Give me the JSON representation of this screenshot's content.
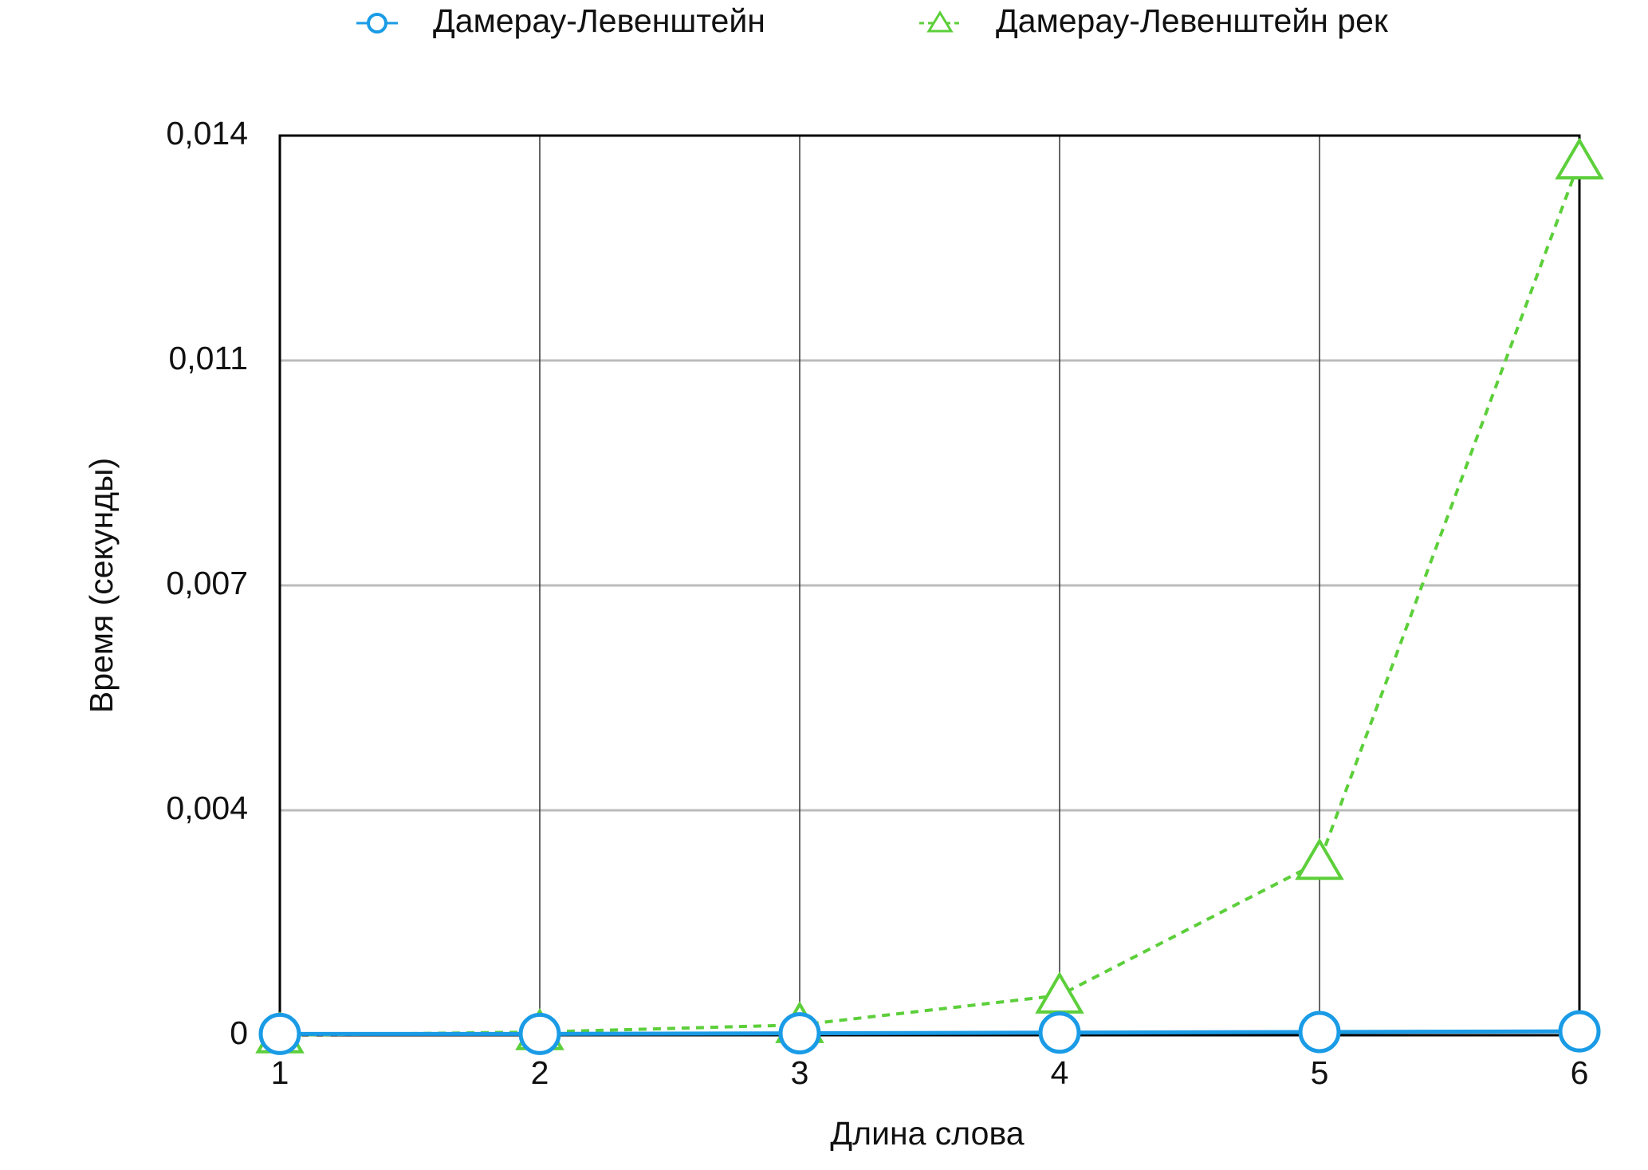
{
  "chart_data": {
    "type": "line",
    "x_label": "Длина слова",
    "y_label": "Время (секунды)",
    "x": [
      1,
      2,
      3,
      4,
      5,
      6
    ],
    "xlim": [
      1,
      6
    ],
    "xticks": [
      1,
      2,
      3,
      4,
      5,
      6
    ],
    "ylim": [
      0,
      0.014
    ],
    "yticks": [
      0,
      {
        "value": 0.0035,
        "label": "0,004"
      },
      {
        "value": 0.007,
        "label": "0,007"
      },
      {
        "value": 0.0105,
        "label": "0,011"
      },
      {
        "value": 0.014,
        "label": "0,014"
      }
    ],
    "grid": true,
    "legend": "top",
    "series": [
      {
        "name": "Дамерау-Левенштейн",
        "color": "#1a9be6",
        "marker": "circle",
        "linestyle": "solid",
        "values": [
          2e-05,
          2e-05,
          3e-05,
          4e-05,
          5e-05,
          6e-05
        ]
      },
      {
        "name": "Дамерау-Левенштейн рек",
        "color": "#5ccf3a",
        "marker": "triangle",
        "linestyle": "dashed",
        "values": [
          0,
          5e-05,
          0.00016,
          0.00062,
          0.0027,
          0.0136
        ]
      }
    ]
  }
}
